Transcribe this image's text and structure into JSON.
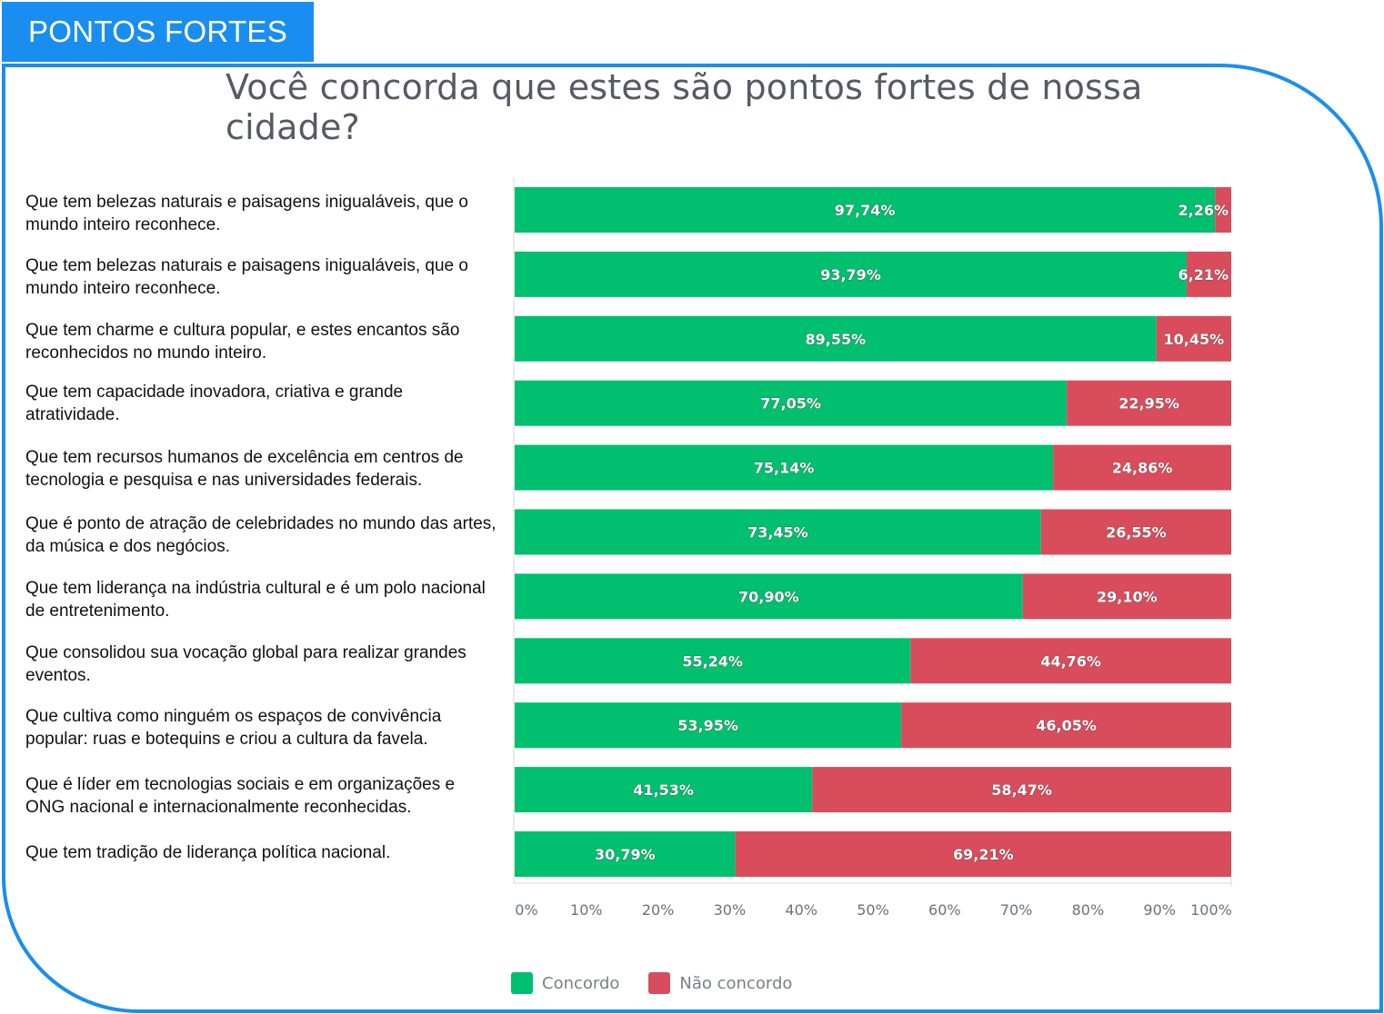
{
  "header": {
    "tag": "PONTOS FORTES"
  },
  "chart_data": {
    "type": "bar",
    "orientation": "horizontal",
    "stacked": true,
    "title": "Você concorda que estes são pontos fortes de nossa cidade?",
    "categories": [
      "Que tem belezas naturais e paisagens inigualáveis, que o mundo inteiro reconhece.",
      "Que tem belezas naturais e paisagens inigualáveis, que o mundo inteiro reconhece.",
      "Que tem charme e cultura popular, e estes encantos são reconhecidos no mundo inteiro.",
      "Que tem capacidade inovadora, criativa e grande atratividade.",
      "Que tem recursos humanos de excelência em centros de tecnologia e pesquisa e nas universidades federais.",
      "Que é ponto de atração de celebridades no mundo das artes, da música e dos negócios.",
      "Que tem liderança na indústria cultural e é um polo nacional de entretenimento.",
      "Que consolidou sua vocação global para realizar grandes eventos.",
      "Que cultiva como ninguém os espaços de convivência popular: ruas e botequins e criou a cultura da favela.",
      "Que é líder em tecnologias sociais e em organizações e ONG nacional e internacionalmente reconhecidas.",
      "Que tem tradição de liderança política nacional."
    ],
    "series": [
      {
        "name": "Concordo",
        "color": "#00bf6f",
        "values": [
          97.74,
          93.79,
          89.55,
          77.05,
          75.14,
          73.45,
          70.9,
          55.24,
          53.95,
          41.53,
          30.79
        ],
        "labels": [
          "97,74%",
          "93,79%",
          "89,55%",
          "77,05%",
          "75,14%",
          "73,45%",
          "70,90%",
          "55,24%",
          "53,95%",
          "41,53%",
          "30,79%"
        ]
      },
      {
        "name": "Não concordo",
        "color": "#d94c5c",
        "values": [
          2.26,
          6.21,
          10.45,
          22.95,
          24.86,
          26.55,
          29.1,
          44.76,
          46.05,
          58.47,
          69.21
        ],
        "labels": [
          "2,26%",
          "6,21%",
          "10,45%",
          "22,95%",
          "24,86%",
          "26,55%",
          "29,10%",
          "44,76%",
          "46,05%",
          "58,47%",
          "69,21%"
        ]
      }
    ],
    "xlim": [
      0,
      100
    ],
    "x_ticks": [
      "0%",
      "10%",
      "20%",
      "30%",
      "40%",
      "50%",
      "60%",
      "70%",
      "80%",
      "90%",
      "100%"
    ],
    "legend_position": "bottom-left",
    "grid": false
  }
}
